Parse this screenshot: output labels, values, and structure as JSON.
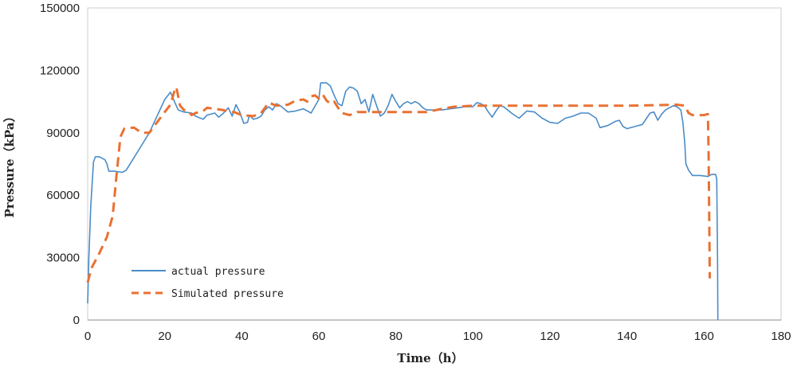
{
  "chart_data": {
    "type": "line",
    "title": "",
    "xlabel": "Time（h）",
    "ylabel": "Pressure（kPa）",
    "xlim": [
      0,
      180
    ],
    "ylim": [
      0,
      150000
    ],
    "xticks": [
      "0",
      "20",
      "40",
      "60",
      "80",
      "100",
      "120",
      "140",
      "160",
      "180"
    ],
    "yticks": [
      "0",
      "30000",
      "60000",
      "90000",
      "120000",
      "150000"
    ],
    "grid": false,
    "legend_position": "bottom-left",
    "series": [
      {
        "name": "actual pressure",
        "color": "#4A8CC8",
        "style": "solid",
        "points": [
          [
            0,
            8000
          ],
          [
            0.3,
            30000
          ],
          [
            0.8,
            55000
          ],
          [
            1.5,
            76000
          ],
          [
            2,
            78500
          ],
          [
            3,
            78500
          ],
          [
            4.5,
            77000
          ],
          [
            5,
            75000
          ],
          [
            5.5,
            71500
          ],
          [
            7,
            71500
          ],
          [
            9,
            71000
          ],
          [
            10,
            72000
          ],
          [
            12,
            78000
          ],
          [
            14,
            84000
          ],
          [
            16,
            90000
          ],
          [
            18,
            98000
          ],
          [
            20,
            106000
          ],
          [
            21.5,
            109500
          ],
          [
            22.5,
            105000
          ],
          [
            23.5,
            101000
          ],
          [
            25,
            100000
          ],
          [
            27,
            99500
          ],
          [
            28,
            98000
          ],
          [
            30,
            96500
          ],
          [
            31,
            98500
          ],
          [
            33,
            99500
          ],
          [
            34,
            97500
          ],
          [
            35,
            99000
          ],
          [
            36.5,
            102000
          ],
          [
            37.5,
            98000
          ],
          [
            38.5,
            103500
          ],
          [
            39.5,
            100000
          ],
          [
            40.5,
            94500
          ],
          [
            41.5,
            95000
          ],
          [
            42,
            98500
          ],
          [
            43,
            96500
          ],
          [
            44,
            97000
          ],
          [
            45,
            98000
          ],
          [
            46,
            101000
          ],
          [
            47,
            102500
          ],
          [
            48,
            101000
          ],
          [
            49,
            104000
          ],
          [
            50,
            103000
          ],
          [
            52,
            100000
          ],
          [
            54,
            100500
          ],
          [
            56,
            101500
          ],
          [
            58,
            99500
          ],
          [
            60,
            106000
          ],
          [
            60.5,
            114000
          ],
          [
            62,
            114000
          ],
          [
            63,
            112500
          ],
          [
            64,
            108000
          ],
          [
            65,
            104000
          ],
          [
            66,
            103000
          ],
          [
            67,
            110000
          ],
          [
            68,
            112000
          ],
          [
            69,
            111500
          ],
          [
            70,
            110000
          ],
          [
            71,
            104000
          ],
          [
            72,
            106000
          ],
          [
            73,
            100000
          ],
          [
            74,
            108500
          ],
          [
            75,
            103000
          ],
          [
            76,
            98000
          ],
          [
            77,
            99500
          ],
          [
            78,
            103000
          ],
          [
            79,
            108500
          ],
          [
            80,
            105000
          ],
          [
            81,
            102000
          ],
          [
            82,
            104000
          ],
          [
            83,
            105000
          ],
          [
            84,
            104000
          ],
          [
            85,
            105000
          ],
          [
            86,
            104000
          ],
          [
            87,
            102000
          ],
          [
            88,
            101000
          ],
          [
            90,
            101000
          ],
          [
            92,
            101000
          ],
          [
            94,
            101500
          ],
          [
            96,
            102000
          ],
          [
            98,
            102500
          ],
          [
            100,
            102500
          ],
          [
            101,
            104500
          ],
          [
            102,
            104000
          ],
          [
            103,
            103000
          ],
          [
            104,
            100000
          ],
          [
            105,
            97500
          ],
          [
            106,
            100500
          ],
          [
            107,
            103000
          ],
          [
            108,
            102500
          ],
          [
            110,
            99500
          ],
          [
            112,
            97000
          ],
          [
            114,
            100500
          ],
          [
            116,
            100000
          ],
          [
            118,
            97000
          ],
          [
            120,
            95000
          ],
          [
            122,
            94500
          ],
          [
            124,
            97000
          ],
          [
            126,
            98000
          ],
          [
            128,
            99500
          ],
          [
            130,
            99500
          ],
          [
            132,
            97000
          ],
          [
            133,
            92500
          ],
          [
            135,
            93500
          ],
          [
            137,
            95500
          ],
          [
            138,
            96000
          ],
          [
            139,
            93000
          ],
          [
            140,
            92000
          ],
          [
            142,
            93000
          ],
          [
            144,
            94000
          ],
          [
            146,
            99500
          ],
          [
            147,
            100000
          ],
          [
            148,
            96000
          ],
          [
            149,
            99000
          ],
          [
            150,
            101000
          ],
          [
            151,
            102000
          ],
          [
            152,
            103000
          ],
          [
            153,
            102500
          ],
          [
            154,
            101000
          ],
          [
            154.5,
            95000
          ],
          [
            155,
            85000
          ],
          [
            155.3,
            75000
          ],
          [
            156,
            72000
          ],
          [
            157,
            69500
          ],
          [
            159,
            69500
          ],
          [
            161,
            69000
          ],
          [
            162,
            70000
          ],
          [
            163,
            70000
          ],
          [
            163.3,
            68000
          ],
          [
            163.5,
            30000
          ],
          [
            163.6,
            0
          ]
        ]
      },
      {
        "name": "Simulated pressure",
        "color": "#E97132",
        "style": "dashed",
        "points": [
          [
            0,
            18000
          ],
          [
            1,
            25000
          ],
          [
            3,
            32000
          ],
          [
            5,
            40000
          ],
          [
            6.5,
            50000
          ],
          [
            7.5,
            70000
          ],
          [
            8.5,
            88000
          ],
          [
            9.5,
            92000
          ],
          [
            12,
            92500
          ],
          [
            14,
            90000
          ],
          [
            16,
            90000
          ],
          [
            18,
            95000
          ],
          [
            20,
            100000
          ],
          [
            21.5,
            103500
          ],
          [
            22.5,
            110000
          ],
          [
            23,
            112000
          ],
          [
            24,
            103000
          ],
          [
            25,
            101000
          ],
          [
            26,
            100500
          ],
          [
            27,
            98500
          ],
          [
            28,
            99500
          ],
          [
            30,
            100500
          ],
          [
            31,
            102000
          ],
          [
            33,
            101500
          ],
          [
            35,
            101000
          ],
          [
            37,
            100000
          ],
          [
            38,
            100000
          ],
          [
            40,
            98500
          ],
          [
            43,
            98000
          ],
          [
            45,
            99500
          ],
          [
            47,
            104500
          ],
          [
            49,
            103000
          ],
          [
            52,
            103500
          ],
          [
            54,
            105500
          ],
          [
            56,
            106000
          ],
          [
            57,
            105000
          ],
          [
            58,
            107500
          ],
          [
            59,
            108000
          ],
          [
            60,
            106500
          ],
          [
            61,
            108500
          ],
          [
            62,
            105500
          ],
          [
            63,
            104000
          ],
          [
            64,
            105000
          ],
          [
            65,
            102000
          ],
          [
            66,
            99500
          ],
          [
            68,
            98500
          ],
          [
            70,
            100000
          ],
          [
            80,
            100000
          ],
          [
            88,
            100000
          ],
          [
            92,
            101500
          ],
          [
            95,
            102500
          ],
          [
            100,
            103000
          ],
          [
            120,
            103000
          ],
          [
            140,
            103000
          ],
          [
            153,
            103500
          ],
          [
            155,
            103000
          ],
          [
            156,
            99500
          ],
          [
            157,
            98500
          ],
          [
            160,
            98500
          ],
          [
            161,
            99000
          ],
          [
            161.2,
            80000
          ],
          [
            161.4,
            40000
          ],
          [
            161.5,
            20000
          ]
        ]
      }
    ]
  }
}
